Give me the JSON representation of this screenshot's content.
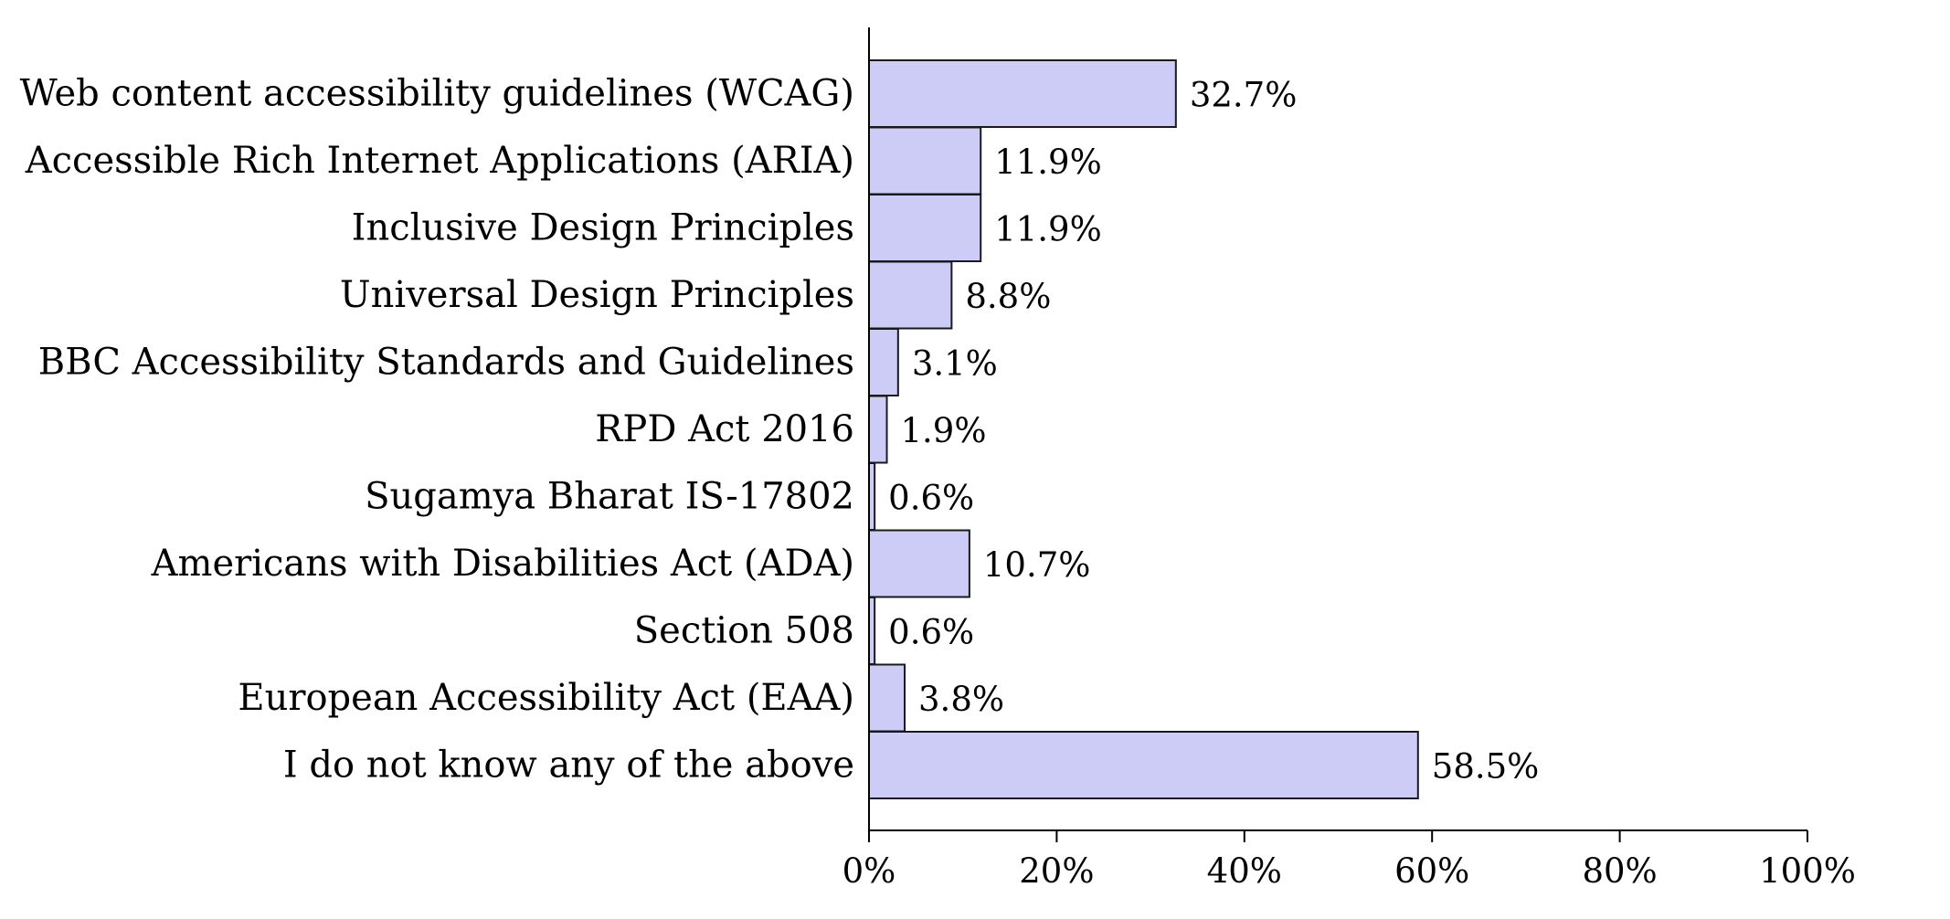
{
  "chart_data": {
    "type": "bar",
    "orientation": "horizontal",
    "categories": [
      "Web content accessibility guidelines (WCAG)",
      "Accessible Rich Internet Applications (ARIA)",
      "Inclusive Design Principles",
      "Universal Design Principles",
      "BBC Accessibility Standards and Guidelines",
      "RPD Act 2016",
      "Sugamya Bharat IS-17802",
      "Americans with Disabilities Act (ADA)",
      "Section 508",
      "European Accessibility Act (EAA)",
      "I do not know any of the above"
    ],
    "values": [
      32.7,
      11.9,
      11.9,
      8.8,
      3.1,
      1.9,
      0.6,
      10.7,
      0.6,
      3.8,
      58.5
    ],
    "data_labels": [
      "32.7%",
      "11.9%",
      "11.9%",
      "8.8%",
      "3.1%",
      "1.9%",
      "0.6%",
      "10.7%",
      "0.6%",
      "3.8%",
      "58.5%"
    ],
    "xlim": [
      0,
      100
    ],
    "xticks": [
      0,
      20,
      40,
      60,
      80,
      100
    ],
    "xtick_labels": [
      "0%",
      "20%",
      "40%",
      "60%",
      "80%",
      "100%"
    ],
    "title": "",
    "xlabel": "",
    "ylabel": "",
    "grid": false,
    "legend": "none",
    "colors": {
      "bar_fill": "#ccccf7",
      "bar_stroke": "#1a1a1a",
      "axis": "#000000",
      "text": "#000000"
    }
  }
}
